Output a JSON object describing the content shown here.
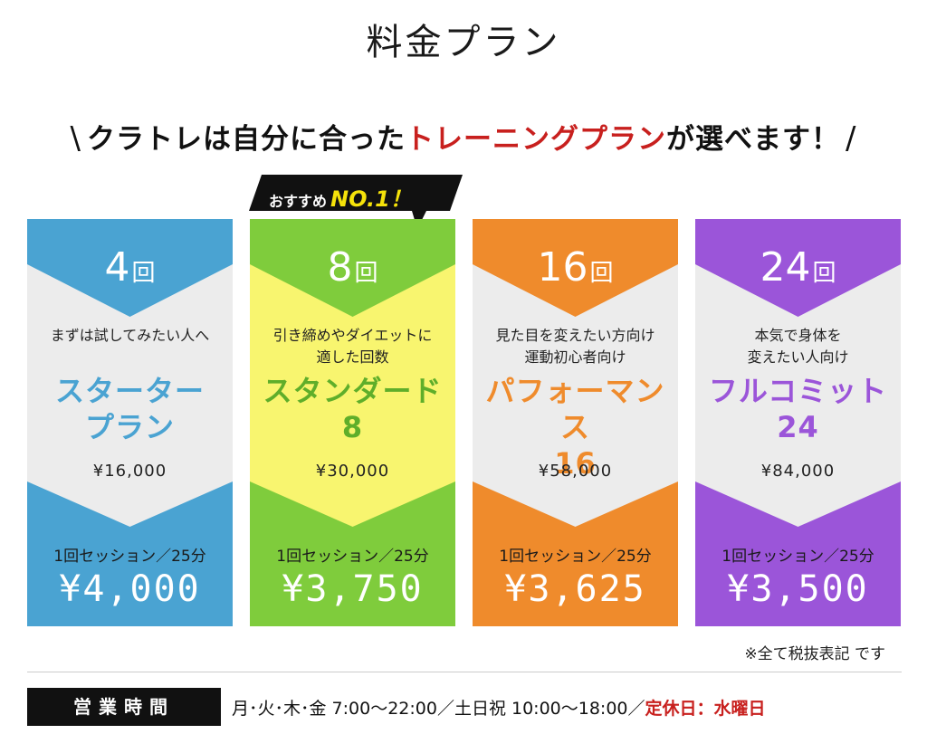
{
  "page": {
    "title": "料金プラン",
    "tagline_pre": "クラトレは自分に合った",
    "tagline_accent": "トレーニングプラン",
    "tagline_post": "が選べます！",
    "slash_left": "\\",
    "slash_right": "/"
  },
  "badge": {
    "label": "おすすめ",
    "highlight": "NO.1！"
  },
  "colors": {
    "blue": "#4aa3d2",
    "green": "#7fcc3c",
    "yellow_panel": "#f8f56f",
    "orange": "#ef8b2c",
    "purple": "#9b55d9",
    "panel_gray": "#ececec",
    "accent_red": "#c8201e"
  },
  "plans": [
    {
      "count": "4",
      "unit": "回",
      "desc_1": "まずは試してみたい人へ",
      "desc_2": "",
      "name_1": "スターター",
      "name_2": "プラン",
      "total": "¥16,000",
      "session": "1回セッション／25分",
      "per": "¥4,000"
    },
    {
      "count": "8",
      "unit": "回",
      "desc_1": "引き締めやダイエットに",
      "desc_2": "適した回数",
      "name_1": "スタンダード",
      "name_2": "8",
      "total": "¥30,000",
      "session": "1回セッション／25分",
      "per": "¥3,750"
    },
    {
      "count": "16",
      "unit": "回",
      "desc_1": "見た目を変えたい方向け",
      "desc_2": "運動初心者向け",
      "name_1": "パフォーマンス",
      "name_2": "16",
      "total": "¥58,000",
      "session": "1回セッション／25分",
      "per": "¥3,625"
    },
    {
      "count": "24",
      "unit": "回",
      "desc_1": "本気で身体を",
      "desc_2": "変えたい人向け",
      "name_1": "フルコミット",
      "name_2": "24",
      "total": "¥84,000",
      "session": "1回セッション／25分",
      "per": "¥3,500"
    }
  ],
  "note": "※全て税抜表記 です",
  "hours": {
    "label": "営業時間",
    "text": "月･火･木･金 7:00〜22:00／土日祝 10:00〜18:00／",
    "closed": "定休日：水曜日"
  }
}
